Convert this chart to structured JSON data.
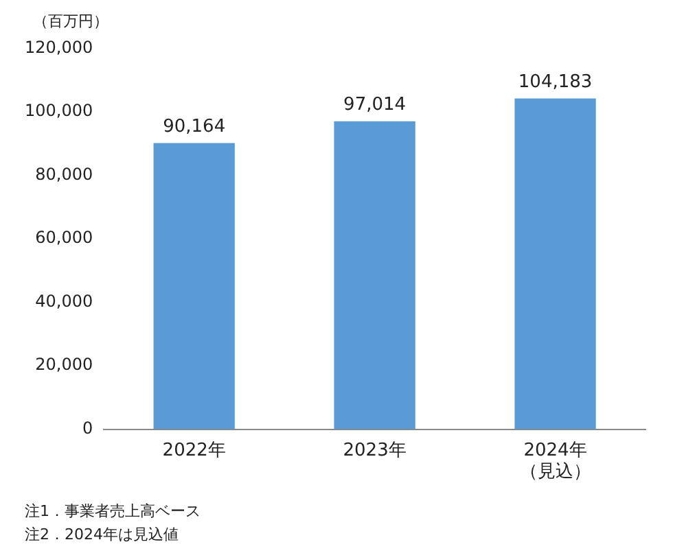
{
  "chart_data": {
    "type": "bar",
    "ylabel": "（百万円）",
    "categories": [
      "2022年",
      "2023年",
      "2024年（見込）"
    ],
    "values": [
      90164,
      97014,
      104183
    ],
    "color": "#5b9bd5",
    "value_labels": [
      "90,164",
      "97,014",
      "104,183"
    ],
    "ylim": [
      0,
      120000
    ],
    "yticks": [
      {
        "value": 0,
        "label": "0"
      },
      {
        "value": 20000,
        "label": "20,000"
      },
      {
        "value": 40000,
        "label": "40,000"
      },
      {
        "value": 60000,
        "label": "60,000"
      },
      {
        "value": 80000,
        "label": "80,000"
      },
      {
        "value": 100000,
        "label": "100,000"
      },
      {
        "value": 120000,
        "label": "120,000"
      }
    ],
    "grid": false,
    "legend": false,
    "annotations": [
      "注1．事業者売上高ベース",
      "注2．2024年は見込値"
    ]
  }
}
